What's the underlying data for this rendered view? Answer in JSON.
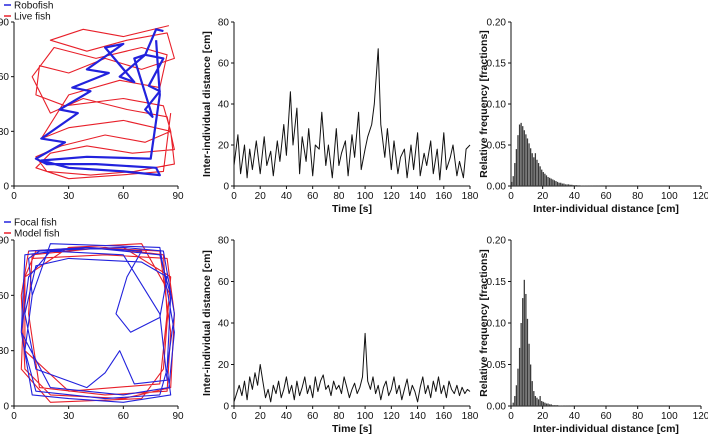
{
  "colors": {
    "blue": "#2222dd",
    "red": "#e8202a",
    "black": "#111111"
  },
  "chart_data": [
    {
      "type": "line",
      "name": "top-trajectory",
      "legend": [
        "Robofish",
        "Live fish"
      ],
      "xlim": [
        0,
        90
      ],
      "ylim": [
        0,
        90
      ],
      "xticks": [
        0,
        30,
        60,
        90
      ],
      "yticks": [
        0,
        30,
        60,
        90
      ],
      "series": [
        {
          "name": "Robofish",
          "color": "#2222dd",
          "x": [
            82,
            78,
            72,
            82,
            74,
            80,
            72,
            76,
            66,
            72,
            58,
            66,
            50,
            60,
            40,
            52,
            32,
            42,
            25,
            35,
            15,
            28,
            12,
            18,
            45,
            78,
            80,
            60,
            30,
            15,
            40,
            75,
            80,
            78
          ],
          "y": [
            85,
            86,
            72,
            70,
            55,
            52,
            42,
            38,
            70,
            72,
            60,
            57,
            76,
            78,
            64,
            62,
            54,
            52,
            42,
            40,
            26,
            24,
            15,
            12,
            12,
            10,
            6,
            8,
            10,
            14,
            16,
            15,
            50,
            80
          ]
        },
        {
          "name": "Live fish",
          "color": "#e8202a",
          "x": [
            85,
            60,
            38,
            20,
            40,
            62,
            84,
            88,
            70,
            50,
            30,
            14,
            12,
            28,
            60,
            82,
            86,
            72,
            50,
            26,
            12,
            18,
            42,
            66,
            88,
            86,
            60,
            30,
            15,
            30,
            58,
            80,
            84,
            70,
            45,
            22,
            10,
            20,
            38,
            62,
            84,
            88,
            65,
            40,
            20,
            12,
            30,
            58,
            82,
            86
          ],
          "y": [
            88,
            82,
            86,
            80,
            74,
            80,
            84,
            70,
            64,
            70,
            62,
            66,
            50,
            44,
            48,
            44,
            30,
            24,
            28,
            22,
            16,
            8,
            6,
            8,
            12,
            30,
            36,
            32,
            26,
            50,
            58,
            54,
            72,
            76,
            70,
            76,
            60,
            40,
            48,
            42,
            38,
            20,
            18,
            22,
            18,
            10,
            4,
            6,
            8,
            40
          ]
        }
      ]
    },
    {
      "type": "line",
      "name": "top-time-series",
      "xlabel": "Time [s]",
      "ylabel": "Inter-individual distance [cm]",
      "xlim": [
        0,
        180
      ],
      "ylim": [
        0,
        80
      ],
      "xticks": [
        0,
        20,
        40,
        60,
        80,
        100,
        120,
        140,
        160,
        180
      ],
      "yticks": [
        0,
        20,
        40,
        60,
        80
      ],
      "x": [
        0,
        3,
        5,
        8,
        10,
        12,
        14,
        17,
        20,
        23,
        25,
        28,
        30,
        33,
        35,
        38,
        40,
        43,
        45,
        48,
        50,
        52,
        55,
        57,
        60,
        62,
        65,
        67,
        70,
        72,
        75,
        78,
        80,
        82,
        85,
        87,
        90,
        92,
        95,
        97,
        100,
        102,
        105,
        107,
        110,
        112,
        115,
        117,
        120,
        122,
        125,
        127,
        130,
        132,
        135,
        137,
        140,
        142,
        145,
        147,
        150,
        152,
        155,
        157,
        160,
        162,
        165,
        167,
        170,
        172,
        175,
        177,
        180
      ],
      "y": [
        10,
        25,
        6,
        20,
        4,
        18,
        8,
        22,
        6,
        24,
        10,
        17,
        5,
        22,
        12,
        30,
        15,
        46,
        20,
        38,
        6,
        24,
        12,
        28,
        5,
        20,
        18,
        36,
        10,
        20,
        4,
        28,
        10,
        16,
        22,
        5,
        25,
        14,
        36,
        8,
        18,
        24,
        30,
        40,
        67,
        30,
        14,
        28,
        8,
        22,
        6,
        14,
        18,
        4,
        20,
        8,
        26,
        5,
        16,
        10,
        22,
        6,
        18,
        3,
        26,
        8,
        14,
        20,
        5,
        12,
        4,
        18,
        20
      ]
    },
    {
      "type": "bar",
      "name": "top-histogram",
      "xlabel": "Inter-individual distance [cm]",
      "ylabel": "Relative frequency [fractions]",
      "xlim": [
        0,
        120
      ],
      "ylim": [
        0,
        0.2
      ],
      "xticks": [
        0,
        20,
        40,
        60,
        80,
        100,
        120
      ],
      "yticks": [
        0,
        0.05,
        0.1,
        0.15,
        0.2
      ],
      "ytick_labels": [
        "0.00",
        "0.05",
        "0.10",
        "0.15",
        "0.20"
      ],
      "bin_width": 1,
      "values": [
        0.005,
        0.012,
        0.028,
        0.045,
        0.062,
        0.075,
        0.077,
        0.073,
        0.068,
        0.063,
        0.058,
        0.052,
        0.046,
        0.04,
        0.035,
        0.04,
        0.032,
        0.028,
        0.024,
        0.02,
        0.017,
        0.015,
        0.013,
        0.011,
        0.01,
        0.009,
        0.008,
        0.007,
        0.006,
        0.005,
        0.004,
        0.004,
        0.003,
        0.003,
        0.002,
        0.002,
        0.002,
        0.0015,
        0.0015,
        0.001,
        0.001,
        0.001,
        0.0008,
        0.0008,
        0.0006,
        0.0006,
        0.0005,
        0.0005,
        0.0004,
        0.0004,
        0.0003,
        0.0003,
        0.0003,
        0.0002,
        0.0002,
        0.0002,
        0.0002,
        0.0001,
        0.0001,
        0.0001,
        0.0001,
        0.0001,
        0.0001,
        0.0001,
        0.0001,
        0.0001
      ]
    },
    {
      "type": "line",
      "name": "bottom-trajectory",
      "legend": [
        "Focal fish",
        "Model fish"
      ],
      "xlim": [
        0,
        90
      ],
      "ylim": [
        0,
        90
      ],
      "xticks": [
        0,
        30,
        60,
        90
      ],
      "yticks": [
        0,
        30,
        60,
        90
      ],
      "series": [
        {
          "name": "Focal fish",
          "color": "#2222dd",
          "x": [
            8,
            40,
            80,
            86,
            84,
            80,
            50,
            12,
            6,
            10,
            8,
            14,
            60,
            82,
            88,
            84,
            86,
            60,
            30,
            10,
            4,
            6,
            40,
            70,
            62,
            56,
            64,
            80,
            84,
            70,
            30,
            12,
            6,
            12,
            40,
            50,
            58,
            66,
            84,
            80,
            60,
            20,
            8,
            4,
            20,
            60,
            85,
            88,
            80,
            20,
            10
          ],
          "y": [
            84,
            86,
            82,
            60,
            20,
            6,
            4,
            8,
            30,
            60,
            80,
            84,
            86,
            84,
            50,
            20,
            6,
            2,
            4,
            6,
            40,
            82,
            86,
            84,
            70,
            50,
            40,
            48,
            70,
            78,
            80,
            76,
            50,
            20,
            10,
            18,
            30,
            12,
            14,
            50,
            82,
            84,
            70,
            40,
            10,
            6,
            10,
            40,
            86,
            88,
            60
          ]
        },
        {
          "name": "Model fish",
          "color": "#e8202a",
          "x": [
            10,
            50,
            84,
            88,
            86,
            60,
            20,
            6,
            4,
            8,
            40,
            80,
            86,
            84,
            50,
            14,
            8,
            10,
            50,
            82,
            84,
            80,
            30,
            6,
            6,
            12,
            60,
            86,
            82,
            70,
            20,
            4,
            6,
            30,
            70,
            86
          ],
          "y": [
            80,
            82,
            80,
            50,
            10,
            4,
            6,
            20,
            60,
            84,
            86,
            84,
            40,
            8,
            6,
            10,
            50,
            82,
            86,
            82,
            50,
            12,
            8,
            30,
            70,
            84,
            86,
            70,
            20,
            4,
            2,
            20,
            70,
            86,
            88,
            60
          ]
        }
      ]
    },
    {
      "type": "line",
      "name": "bottom-time-series",
      "xlabel": "Time [s]",
      "ylabel": "Inter-individual distance [cm]",
      "xlim": [
        0,
        180
      ],
      "ylim": [
        0,
        80
      ],
      "xticks": [
        0,
        20,
        40,
        60,
        80,
        100,
        120,
        140,
        160,
        180
      ],
      "yticks": [
        0,
        20,
        40,
        60,
        80
      ],
      "x": [
        0,
        2,
        4,
        6,
        8,
        10,
        12,
        14,
        16,
        18,
        20,
        22,
        24,
        26,
        28,
        30,
        32,
        34,
        36,
        38,
        40,
        42,
        44,
        46,
        48,
        50,
        52,
        54,
        56,
        58,
        60,
        62,
        64,
        66,
        68,
        70,
        72,
        74,
        76,
        78,
        80,
        82,
        84,
        86,
        88,
        90,
        92,
        94,
        96,
        98,
        100,
        102,
        104,
        106,
        108,
        110,
        112,
        114,
        116,
        118,
        120,
        122,
        124,
        126,
        128,
        130,
        132,
        134,
        136,
        138,
        140,
        142,
        144,
        146,
        148,
        150,
        152,
        154,
        156,
        158,
        160,
        162,
        164,
        166,
        168,
        170,
        172,
        174,
        176,
        178,
        180
      ],
      "y": [
        2,
        6,
        10,
        5,
        12,
        3,
        14,
        8,
        16,
        10,
        20,
        12,
        4,
        8,
        2,
        10,
        6,
        12,
        4,
        8,
        14,
        6,
        10,
        3,
        12,
        5,
        9,
        14,
        6,
        10,
        4,
        14,
        7,
        12,
        15,
        8,
        10,
        5,
        12,
        8,
        10,
        6,
        14,
        9,
        4,
        8,
        11,
        6,
        9,
        14,
        35,
        12,
        8,
        14,
        6,
        10,
        3,
        9,
        12,
        5,
        8,
        14,
        6,
        10,
        3,
        8,
        13,
        5,
        10,
        7,
        2,
        9,
        14,
        6,
        10,
        4,
        12,
        7,
        14,
        6,
        10,
        4,
        12,
        8,
        6,
        10,
        5,
        9,
        6,
        8,
        7
      ]
    },
    {
      "type": "bar",
      "name": "bottom-histogram",
      "xlabel": "Inter-individual distance [cm]",
      "ylabel": "Relative frequency [fractions]",
      "xlim": [
        0,
        120
      ],
      "ylim": [
        0,
        0.2
      ],
      "xticks": [
        0,
        20,
        40,
        60,
        80,
        100,
        120
      ],
      "yticks": [
        0,
        0.05,
        0.1,
        0.15,
        0.2
      ],
      "ytick_labels": [
        "0.00",
        "0.05",
        "0.10",
        "0.15",
        "0.20"
      ],
      "bin_width": 1,
      "values": [
        0.0,
        0.004,
        0.012,
        0.025,
        0.045,
        0.07,
        0.1,
        0.13,
        0.152,
        0.135,
        0.105,
        0.075,
        0.05,
        0.03,
        0.018,
        0.012,
        0.01,
        0.008,
        0.012,
        0.006,
        0.005,
        0.004,
        0.003,
        0.003,
        0.002,
        0.002,
        0.001,
        0.001,
        0.001,
        0.001,
        0.0005,
        0.0005,
        0.0005,
        0.0003,
        0.0003,
        0.0003,
        0.0002,
        0.0002,
        0.0002,
        0.0001
      ]
    }
  ]
}
